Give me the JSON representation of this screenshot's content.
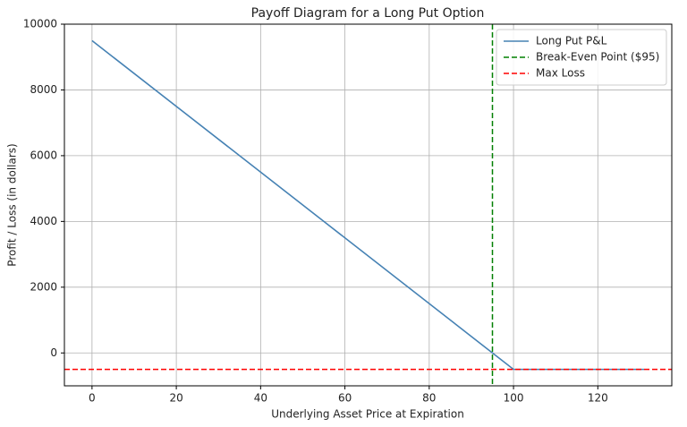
{
  "chart_data": {
    "type": "line",
    "title": "Payoff Diagram for a Long Put Option",
    "x_label": "Underlying Asset Price at Expiration",
    "y_label": "Profit / Loss (in dollars)",
    "x": [
      0,
      100,
      131
    ],
    "series": [
      {
        "name": "Long Put P&L",
        "color": "#4682b4",
        "values": [
          9500,
          -500,
          -500
        ]
      }
    ],
    "reference_lines": [
      {
        "name": "Break-Even Point ($95)",
        "color": "green",
        "orientation": "vertical",
        "value": 95
      },
      {
        "name": "Max Loss",
        "color": "red",
        "orientation": "horizontal",
        "value": -500
      }
    ],
    "xlim": [
      -6.55,
      137.55
    ],
    "xticks": [
      0,
      20,
      40,
      60,
      80,
      100,
      120
    ],
    "ylim": [
      -1000,
      10000
    ],
    "yticks": [
      0,
      2000,
      4000,
      6000,
      8000,
      10000
    ],
    "grid": true,
    "legend": "upper-right"
  }
}
